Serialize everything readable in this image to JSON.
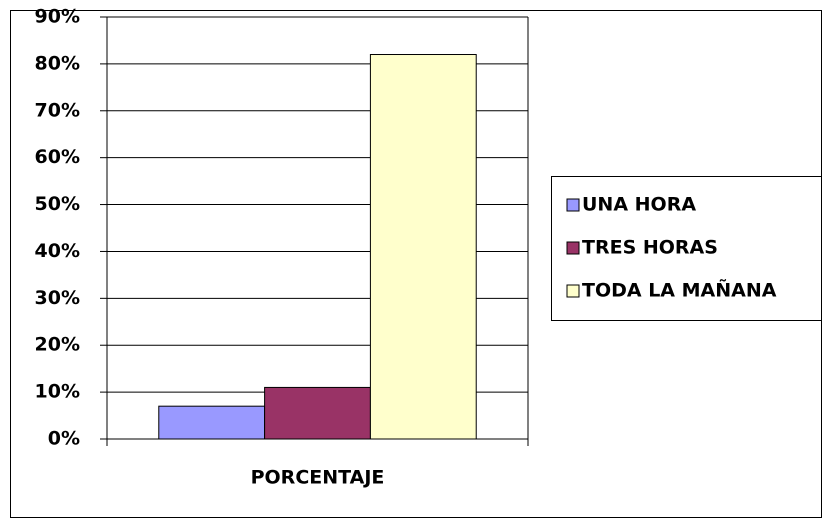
{
  "chart_data": {
    "type": "bar",
    "categories": [
      "PORCENTAJE"
    ],
    "series": [
      {
        "name": "UNA HORA",
        "color": "#9999ff",
        "values": [
          7
        ]
      },
      {
        "name": "TRES HORAS",
        "color": "#993366",
        "values": [
          11
        ]
      },
      {
        "name": "TODA LA MAÑANA",
        "color": "#ffffcc",
        "values": [
          82
        ]
      }
    ],
    "ylim": [
      0,
      90
    ],
    "yticks": [
      {
        "value": 0,
        "label": "0%"
      },
      {
        "value": 10,
        "label": "10%"
      },
      {
        "value": 20,
        "label": "20%"
      },
      {
        "value": 30,
        "label": "30%"
      },
      {
        "value": 40,
        "label": "40%"
      },
      {
        "value": 50,
        "label": "50%"
      },
      {
        "value": 60,
        "label": "60%"
      },
      {
        "value": 70,
        "label": "70%"
      },
      {
        "value": 80,
        "label": "80%"
      },
      {
        "value": 90,
        "label": "90%"
      }
    ],
    "grid": true,
    "legend": "right"
  }
}
